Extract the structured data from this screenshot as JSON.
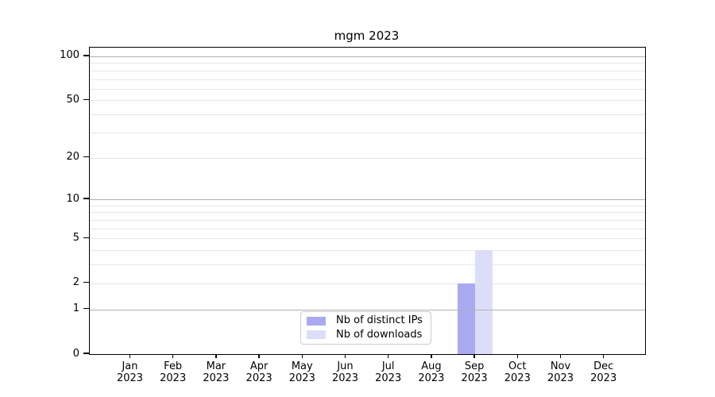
{
  "title": "mgm 2023",
  "chart_data": {
    "type": "bar",
    "title": "mgm 2023",
    "months": [
      "Jan",
      "Feb",
      "Mar",
      "Apr",
      "May",
      "Jun",
      "Jul",
      "Aug",
      "Sep",
      "Oct",
      "Nov",
      "Dec"
    ],
    "year_label": "2023",
    "series": [
      {
        "name": "Nb of distinct IPs",
        "color": "#a9aaf2",
        "values": [
          0,
          0,
          0,
          0,
          0,
          0,
          0,
          0,
          2,
          0,
          0,
          0
        ]
      },
      {
        "name": "Nb of downloads",
        "color": "#dcdef9",
        "values": [
          0,
          0,
          0,
          0,
          0,
          0,
          0,
          0,
          4,
          0,
          0,
          0
        ]
      }
    ],
    "y_scale": "log1p",
    "y_max": 114.6,
    "y_ticks": [
      0,
      1,
      2,
      5,
      10,
      20,
      50,
      100
    ],
    "y_major_gridlines": [
      1,
      10,
      100
    ],
    "y_minor_gridlines": [
      2,
      3,
      4,
      5,
      6,
      7,
      8,
      9,
      20,
      30,
      40,
      50,
      60,
      70,
      80,
      90
    ],
    "xlabel": "",
    "ylabel": "",
    "grid": true,
    "legend_position": "lower center",
    "colors": {
      "major_grid": "#b0b0b0",
      "minor_grid": "#e7e7e7",
      "axis": "#000000",
      "legend_border": "#cccccc",
      "background": "#ffffff"
    }
  }
}
